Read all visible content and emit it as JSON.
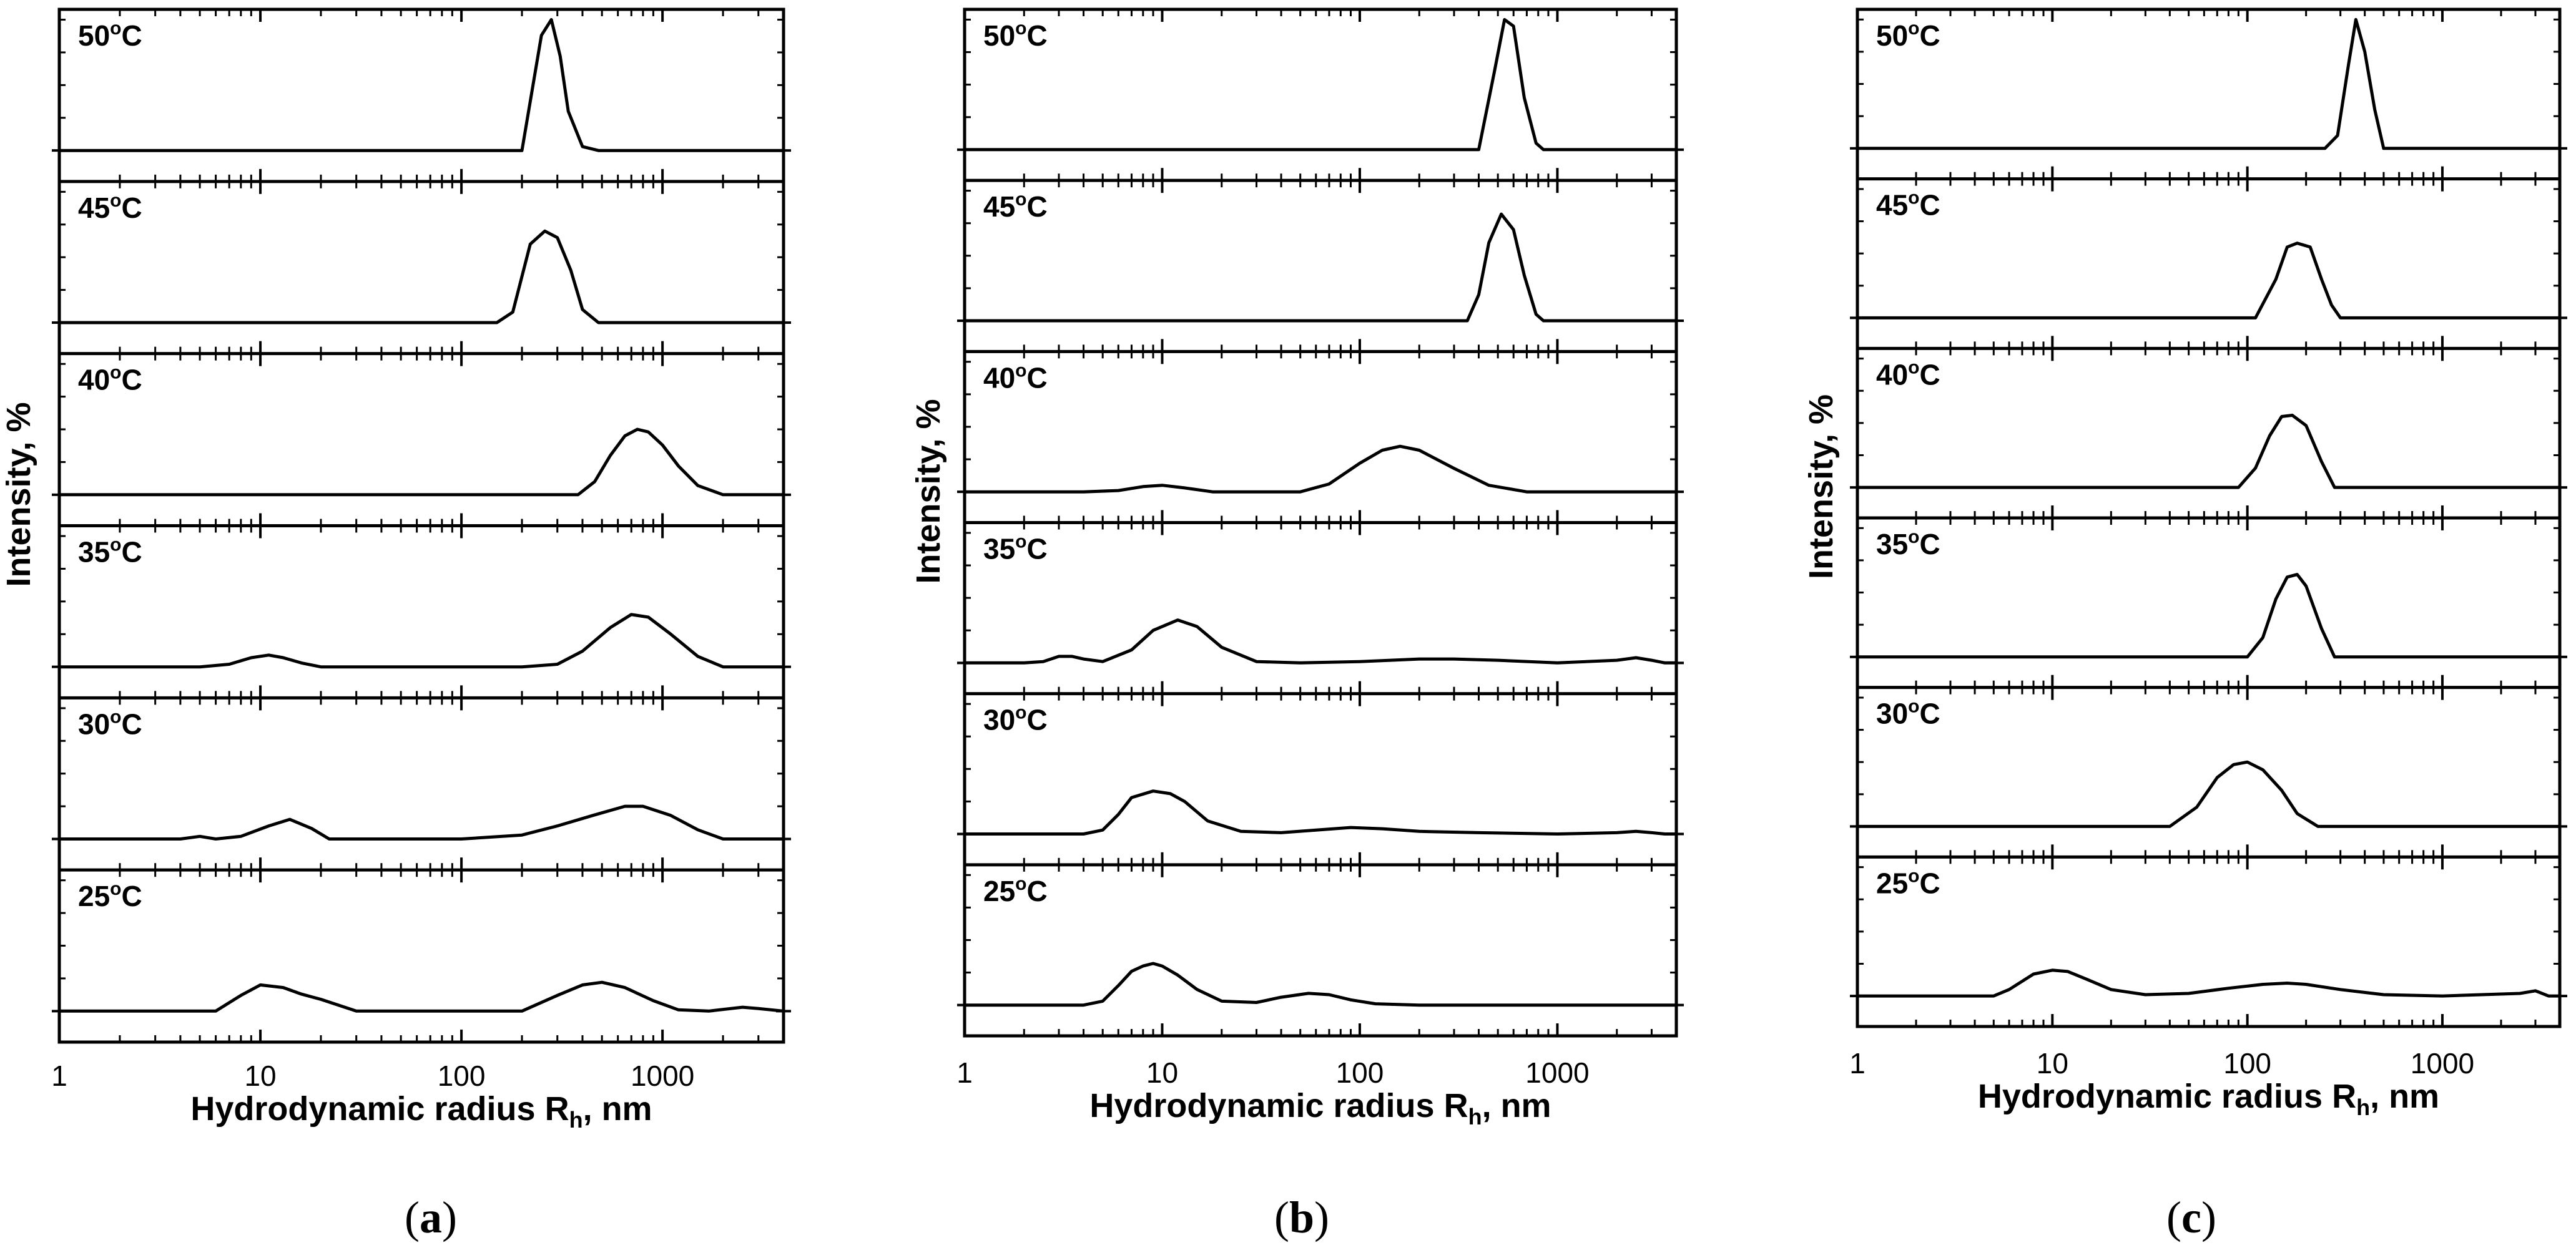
{
  "chart_data": [
    {
      "type": "line",
      "panel_label": "a",
      "xlabel": "Hydrodynamic radius R",
      "xlabel_sub": "h",
      "xlabel_suffix": ", nm",
      "ylabel": "Intensity, %",
      "xscale": "log",
      "xlim": [
        1,
        4000
      ],
      "xticks": [
        "1",
        "10",
        "100",
        "1000"
      ],
      "subplots": [
        {
          "temp": "50",
          "unit": "C",
          "ymax": 100,
          "x": [
            200,
            250,
            280,
            310,
            340,
            400,
            480
          ],
          "y": [
            0,
            88,
            100,
            72,
            30,
            3,
            0
          ]
        },
        {
          "temp": "45",
          "unit": "C",
          "ymax": 100,
          "x": [
            150,
            180,
            220,
            260,
            300,
            350,
            400,
            480
          ],
          "y": [
            0,
            8,
            60,
            70,
            65,
            40,
            10,
            0
          ]
        },
        {
          "temp": "40",
          "unit": "C",
          "ymax": 100,
          "x": [
            380,
            460,
            550,
            650,
            750,
            850,
            1000,
            1200,
            1500,
            2000
          ],
          "y": [
            0,
            10,
            30,
            45,
            50,
            48,
            38,
            22,
            7,
            0
          ]
        },
        {
          "temp": "35",
          "unit": "C",
          "ymax": 100,
          "x": [
            5,
            7,
            9,
            11,
            13,
            16,
            20,
            200,
            300,
            400,
            550,
            700,
            850,
            1100,
            1500,
            2000
          ],
          "y": [
            0,
            2,
            7,
            9,
            7,
            3,
            0,
            0,
            2,
            12,
            30,
            40,
            38,
            25,
            8,
            0
          ]
        },
        {
          "temp": "30",
          "unit": "C",
          "ymax": 100,
          "x": [
            4,
            5,
            6,
            8,
            11,
            14,
            18,
            22,
            100,
            200,
            300,
            450,
            650,
            800,
            1100,
            1500,
            2000
          ],
          "y": [
            0,
            2,
            0,
            2,
            10,
            15,
            8,
            0,
            0,
            3,
            10,
            18,
            25,
            25,
            18,
            7,
            0
          ]
        },
        {
          "temp": "25",
          "unit": "C",
          "ymax": 100,
          "x": [
            6,
            8,
            10,
            13,
            16,
            20,
            30,
            200,
            300,
            400,
            500,
            650,
            900,
            1200,
            1700,
            2500,
            3000,
            4000
          ],
          "y": [
            0,
            12,
            20,
            18,
            13,
            9,
            0,
            0,
            12,
            20,
            22,
            18,
            8,
            1,
            0,
            3,
            2,
            0
          ]
        }
      ]
    },
    {
      "type": "line",
      "panel_label": "b",
      "xlabel": "Hydrodynamic radius R",
      "xlabel_sub": "h",
      "xlabel_suffix": ", nm",
      "ylabel": "Intensity, %",
      "xscale": "log",
      "xlim": [
        1,
        4000
      ],
      "xticks": [
        "1",
        "10",
        "100",
        "1000"
      ],
      "subplots": [
        {
          "temp": "50",
          "unit": "C",
          "ymax": 100,
          "x": [
            400,
            480,
            540,
            600,
            680,
            780,
            850
          ],
          "y": [
            0,
            60,
            100,
            95,
            40,
            5,
            0
          ]
        },
        {
          "temp": "45",
          "unit": "C",
          "ymax": 100,
          "x": [
            350,
            400,
            450,
            520,
            600,
            680,
            780,
            850
          ],
          "y": [
            0,
            20,
            60,
            82,
            70,
            35,
            5,
            0
          ]
        },
        {
          "temp": "40",
          "unit": "C",
          "ymax": 100,
          "x": [
            4,
            6,
            8,
            10,
            13,
            18,
            50,
            70,
            100,
            130,
            160,
            200,
            300,
            450,
            700
          ],
          "y": [
            0,
            1,
            4,
            5,
            3,
            0,
            0,
            6,
            22,
            32,
            35,
            32,
            18,
            5,
            0
          ]
        },
        {
          "temp": "35",
          "unit": "C",
          "ymax": 100,
          "x": [
            2,
            2.5,
            3,
            3.5,
            4,
            5,
            7,
            9,
            12,
            15,
            20,
            30,
            50,
            100,
            200,
            300,
            500,
            1000,
            2000,
            2500,
            3000,
            3500
          ],
          "y": [
            0,
            1,
            5,
            5,
            3,
            1,
            10,
            25,
            33,
            28,
            12,
            1,
            0,
            1,
            3,
            3,
            2,
            0,
            2,
            4,
            2,
            0
          ]
        },
        {
          "temp": "30",
          "unit": "C",
          "ymax": 100,
          "x": [
            4,
            5,
            6,
            7,
            9,
            11,
            13,
            17,
            25,
            40,
            60,
            90,
            130,
            200,
            400,
            1000,
            2000,
            2500,
            3000,
            3500
          ],
          "y": [
            0,
            3,
            15,
            28,
            33,
            31,
            25,
            10,
            2,
            1,
            3,
            5,
            4,
            2,
            1,
            0,
            1,
            2,
            1,
            0
          ]
        },
        {
          "temp": "25",
          "unit": "C",
          "ymax": 100,
          "x": [
            4,
            5,
            6,
            7,
            8,
            9,
            10,
            12,
            15,
            20,
            30,
            40,
            55,
            70,
            90,
            120,
            200,
            400,
            1000,
            3000,
            3500
          ],
          "y": [
            0,
            3,
            15,
            26,
            30,
            32,
            30,
            23,
            12,
            3,
            2,
            6,
            9,
            8,
            4,
            1,
            0,
            0,
            0,
            0,
            0
          ]
        }
      ]
    },
    {
      "type": "line",
      "panel_label": "c",
      "xlabel": "Hydrodynamic radius R",
      "xlabel_sub": "h",
      "xlabel_suffix": ", nm",
      "ylabel": "Intensity, %",
      "xscale": "log",
      "xlim": [
        1,
        4000
      ],
      "xticks": [
        "1",
        "10",
        "100",
        "1000"
      ],
      "subplots": [
        {
          "temp": "50",
          "unit": "C",
          "ymax": 100,
          "x": [
            250,
            290,
            330,
            360,
            400,
            450,
            500
          ],
          "y": [
            0,
            10,
            65,
            100,
            75,
            30,
            0
          ]
        },
        {
          "temp": "45",
          "unit": "C",
          "ymax": 100,
          "x": [
            110,
            140,
            160,
            180,
            210,
            240,
            270,
            300
          ],
          "y": [
            0,
            30,
            55,
            58,
            55,
            30,
            10,
            0
          ]
        },
        {
          "temp": "40",
          "unit": "C",
          "ymax": 100,
          "x": [
            90,
            110,
            130,
            150,
            170,
            200,
            240,
            280
          ],
          "y": [
            0,
            15,
            40,
            55,
            56,
            48,
            20,
            0
          ]
        },
        {
          "temp": "35",
          "unit": "C",
          "ymax": 100,
          "x": [
            100,
            120,
            140,
            160,
            180,
            200,
            240,
            280
          ],
          "y": [
            0,
            15,
            45,
            62,
            64,
            55,
            22,
            0
          ]
        },
        {
          "temp": "30",
          "unit": "C",
          "ymax": 100,
          "x": [
            40,
            55,
            70,
            85,
            100,
            120,
            150,
            180,
            230
          ],
          "y": [
            0,
            15,
            38,
            48,
            50,
            44,
            28,
            10,
            0
          ]
        },
        {
          "temp": "25",
          "unit": "C",
          "ymax": 100,
          "x": [
            5,
            6,
            8,
            10,
            12,
            15,
            20,
            30,
            50,
            80,
            120,
            160,
            200,
            300,
            500,
            1000,
            2500,
            3000,
            3500
          ],
          "y": [
            0,
            5,
            17,
            20,
            19,
            13,
            5,
            1,
            2,
            6,
            9,
            10,
            9,
            5,
            1,
            0,
            2,
            4,
            0
          ]
        }
      ]
    }
  ],
  "captions": [
    {
      "open": "(",
      "letter": "a",
      "close": ")"
    },
    {
      "open": "(",
      "letter": "b",
      "close": ")"
    },
    {
      "open": "(",
      "letter": "c",
      "close": ")"
    }
  ]
}
